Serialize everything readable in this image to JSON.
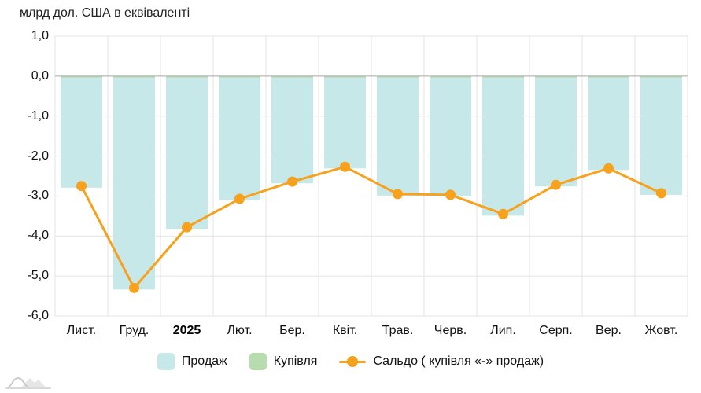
{
  "title": "млрд дол. США в еквіваленті",
  "legend": {
    "prodazh": "Продаж",
    "kupivlia": "Купівля",
    "saldo": "Сальдо ( купівля «-» продаж)"
  },
  "colors": {
    "prodazh": "#c6e8e8",
    "kupivlia": "#b7dcae",
    "saldo": "#f7a11d",
    "grid": "#e3e3e3",
    "zero_line": "#ababab",
    "text": "#111111",
    "logo": "#d6d6d6"
  },
  "chart_data": {
    "type": "bar",
    "title": "млрд дол. США в еквіваленті",
    "categories": [
      "Лист.",
      "Груд.",
      "2025",
      "Лют.",
      "Бер.",
      "Квіт.",
      "Трав.",
      "Черв.",
      "Лип.",
      "Серп.",
      "Вер.",
      "Жовт."
    ],
    "bold_category": "2025",
    "series": [
      {
        "name": "Продаж",
        "type": "bar",
        "stack": true,
        "values": [
          -2.79,
          -5.34,
          -3.82,
          -3.11,
          -2.68,
          -2.31,
          -2.99,
          -3.01,
          -3.49,
          -2.76,
          -2.35,
          -2.97
        ]
      },
      {
        "name": "Купівля",
        "type": "bar",
        "stack": true,
        "values": [
          0.04,
          0.04,
          0.04,
          0.04,
          0.04,
          0.04,
          0.04,
          0.04,
          0.04,
          0.04,
          0.04,
          0.04
        ]
      },
      {
        "name": "Сальдо ( купівля «-» продаж)",
        "type": "line",
        "values": [
          -2.75,
          -5.3,
          -3.78,
          -3.07,
          -2.64,
          -2.27,
          -2.95,
          -2.97,
          -3.45,
          -2.72,
          -2.31,
          -2.93
        ]
      }
    ],
    "ylabel": "млрд дол. США в еквіваленті",
    "xlabel": "",
    "ylim": [
      -6,
      1
    ],
    "y_ticks": [
      "1,0",
      "0,0",
      "-1,0",
      "-2,0",
      "-3,0",
      "-4,0",
      "-5,0",
      "-6,0"
    ],
    "grid": true,
    "legend_position": "bottom"
  }
}
